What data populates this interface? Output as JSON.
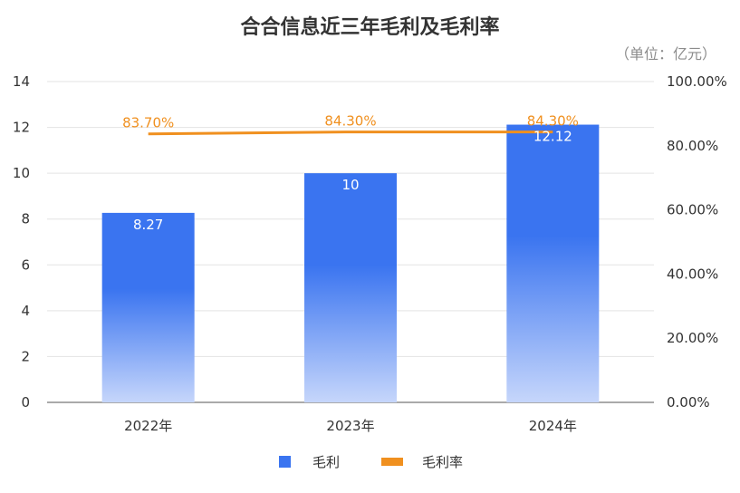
{
  "chart_data": {
    "type": "bar",
    "title": "合合信息近三年毛利及毛利率",
    "unit_note": "（单位：亿元）",
    "categories": [
      "2022年",
      "2023年",
      "2024年"
    ],
    "series": [
      {
        "name": "毛利",
        "kind": "bar",
        "axis": "left",
        "values": [
          8.27,
          10,
          12.12
        ],
        "labels": [
          "8.27",
          "10",
          "12.12"
        ],
        "color": "#3a74f0"
      },
      {
        "name": "毛利率",
        "kind": "line",
        "axis": "right",
        "values": [
          83.7,
          84.3,
          84.3
        ],
        "labels": [
          "83.70%",
          "84.30%",
          "84.30%"
        ],
        "color": "#f0901f"
      }
    ],
    "y_left": {
      "min": 0,
      "max": 14,
      "ticks": [
        "0",
        "2",
        "4",
        "6",
        "8",
        "10",
        "12",
        "14"
      ]
    },
    "y_right": {
      "min": 0,
      "max": 100,
      "ticks": [
        "0.00%",
        "20.00%",
        "40.00%",
        "60.00%",
        "80.00%",
        "100.00%"
      ]
    },
    "grid": true,
    "legend_position": "bottom"
  }
}
